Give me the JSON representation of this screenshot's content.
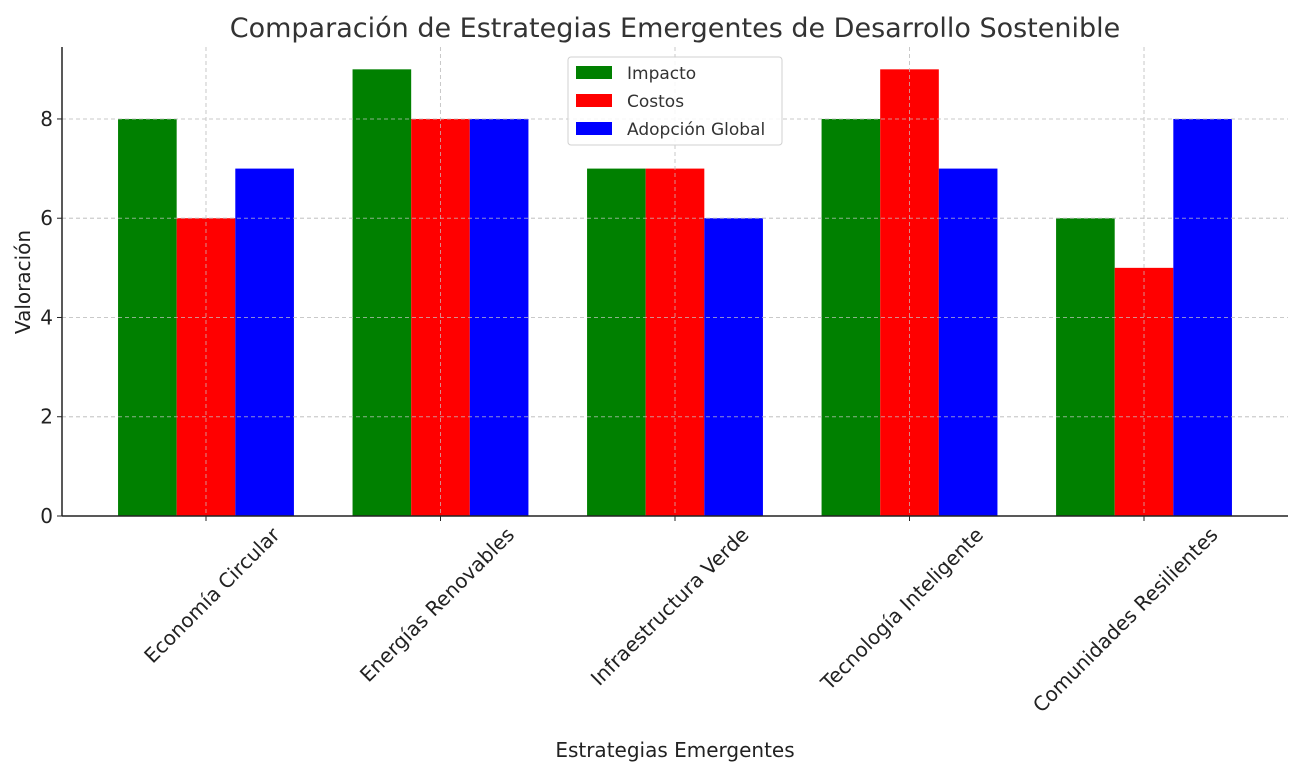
{
  "chart_data": {
    "type": "bar",
    "title": "Comparación de Estrategias Emergentes de Desarrollo Sostenible",
    "xlabel": "Estrategias Emergentes",
    "ylabel": "Valoración",
    "categories": [
      "Economía Circular",
      "Energías Renovables",
      "Infraestructura Verde",
      "Tecnología Inteligente",
      "Comunidades Resilientes"
    ],
    "series": [
      {
        "name": "Impacto",
        "color": "#008000",
        "values": [
          8,
          9,
          7,
          8,
          6
        ]
      },
      {
        "name": "Costos",
        "color": "#ff0000",
        "values": [
          6,
          8,
          7,
          9,
          5
        ]
      },
      {
        "name": "Adopción Global",
        "color": "#0000ff",
        "values": [
          7,
          8,
          6,
          7,
          8
        ]
      }
    ],
    "ylim": [
      0,
      9.45
    ],
    "yticks": [
      0,
      2,
      4,
      6,
      8
    ],
    "grid": true,
    "legend": "top-center"
  }
}
